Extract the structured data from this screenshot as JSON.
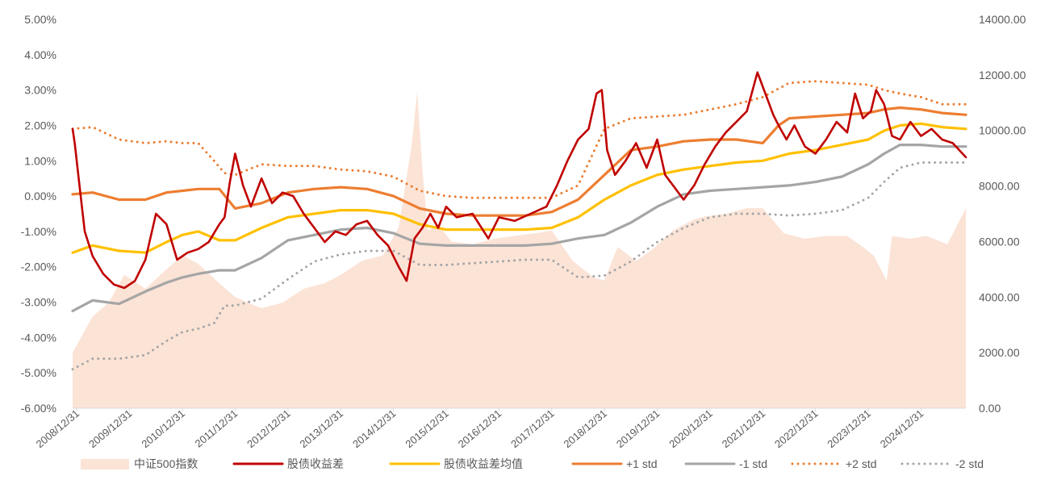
{
  "chart_data": {
    "type": "line",
    "title": "",
    "y_left": {
      "ylim": [
        -6,
        5
      ],
      "ticks": [
        5,
        4,
        3,
        2,
        1,
        0,
        -1,
        -2,
        -3,
        -4,
        -5,
        -6
      ],
      "tick_labels": [
        "5.00%",
        "4.00%",
        "3.00%",
        "2.00%",
        "1.00%",
        "0.00%",
        "-1.00%",
        "-2.00%",
        "-3.00%",
        "-4.00%",
        "-5.00%",
        "-6.00%"
      ]
    },
    "y_right": {
      "ylim": [
        0,
        14000
      ],
      "ticks": [
        14000,
        12000,
        10000,
        8000,
        6000,
        4000,
        2000,
        0
      ],
      "tick_labels": [
        "14000.00",
        "12000.00",
        "10000.00",
        "8000.00",
        "6000.00",
        "4000.00",
        "2000.00",
        "0.00"
      ]
    },
    "x_axis": {
      "range": [
        2008.92,
        2025.85
      ],
      "ticks": [
        2009.0,
        2010.0,
        2011.0,
        2012.0,
        2013.0,
        2014.0,
        2015.0,
        2016.0,
        2017.0,
        2018.0,
        2019.0,
        2020.0,
        2021.0,
        2022.0,
        2023.0,
        2024.0,
        2025.0
      ],
      "tick_labels": [
        "2008/12/31",
        "2009/12/31",
        "2010/12/31",
        "2011/12/31",
        "2012/12/31",
        "2013/12/31",
        "2014/12/31",
        "2015/12/31",
        "2016/12/31",
        "2017/12/31",
        "2018/12/31",
        "2019/12/31",
        "2020/12/31",
        "2021/12/31",
        "2022/12/31",
        "2023/12/31",
        "2024/12/31"
      ]
    },
    "grid": false,
    "legend_position": "bottom",
    "series": [
      {
        "name": "中证500指数",
        "axis": "right",
        "kind": "area",
        "color": "#fbe3d6",
        "x": [
          2008.92,
          2009.3,
          2009.6,
          2009.9,
          2010.3,
          2010.7,
          2011.0,
          2011.3,
          2011.7,
          2012.0,
          2012.5,
          2012.9,
          2013.3,
          2013.7,
          2014.0,
          2014.4,
          2014.8,
          2015.1,
          2015.35,
          2015.45,
          2015.55,
          2015.65,
          2015.85,
          2016.1,
          2016.5,
          2016.9,
          2017.3,
          2017.7,
          2018.0,
          2018.4,
          2018.8,
          2019.0,
          2019.25,
          2019.6,
          2019.9,
          2020.3,
          2020.7,
          2020.9,
          2021.3,
          2021.7,
          2022.0,
          2022.4,
          2022.8,
          2023.2,
          2023.6,
          2023.9,
          2024.1,
          2024.35,
          2024.45,
          2024.8,
          2025.1,
          2025.5,
          2025.85
        ],
        "y": [
          2000,
          3300,
          3800,
          4800,
          4300,
          5000,
          5500,
          5200,
          4500,
          4000,
          3600,
          3800,
          4300,
          4500,
          4800,
          5300,
          5500,
          6500,
          9500,
          11400,
          8600,
          6400,
          6600,
          6000,
          5900,
          6100,
          6200,
          6300,
          6400,
          5300,
          4700,
          4600,
          5800,
          5300,
          5700,
          6400,
          6800,
          6900,
          7000,
          7200,
          7200,
          6300,
          6100,
          6200,
          6200,
          5800,
          5500,
          4600,
          6200,
          6100,
          6200,
          5900,
          7200
        ]
      },
      {
        "name": "股债收益差",
        "axis": "left",
        "kind": "line",
        "color": "#c00000",
        "x": [
          2008.92,
          2008.96,
          2009.05,
          2009.15,
          2009.3,
          2009.5,
          2009.7,
          2009.9,
          2010.1,
          2010.3,
          2010.5,
          2010.7,
          2010.9,
          2011.1,
          2011.3,
          2011.5,
          2011.7,
          2011.8,
          2011.9,
          2012.0,
          2012.15,
          2012.3,
          2012.5,
          2012.7,
          2012.9,
          2013.1,
          2013.3,
          2013.5,
          2013.7,
          2013.9,
          2014.1,
          2014.3,
          2014.5,
          2014.7,
          2014.9,
          2015.1,
          2015.25,
          2015.4,
          2015.55,
          2015.7,
          2015.85,
          2016.0,
          2016.2,
          2016.5,
          2016.8,
          2017.0,
          2017.3,
          2017.6,
          2017.9,
          2018.1,
          2018.3,
          2018.5,
          2018.7,
          2018.85,
          2018.95,
          2019.05,
          2019.2,
          2019.4,
          2019.6,
          2019.8,
          2020.0,
          2020.15,
          2020.3,
          2020.5,
          2020.7,
          2020.9,
          2021.1,
          2021.3,
          2021.5,
          2021.7,
          2021.9,
          2022.1,
          2022.2,
          2022.3,
          2022.45,
          2022.6,
          2022.8,
          2023.0,
          2023.2,
          2023.4,
          2023.6,
          2023.75,
          2023.9,
          2024.05,
          2024.15,
          2024.3,
          2024.45,
          2024.6,
          2024.8,
          2025.0,
          2025.2,
          2025.4,
          2025.6,
          2025.85
        ],
        "y": [
          1.9,
          1.5,
          0.3,
          -1.0,
          -1.7,
          -2.2,
          -2.5,
          -2.6,
          -2.4,
          -1.8,
          -0.5,
          -0.8,
          -1.8,
          -1.6,
          -1.5,
          -1.3,
          -0.8,
          -0.6,
          0.4,
          1.2,
          0.3,
          -0.3,
          0.5,
          -0.2,
          0.1,
          0.0,
          -0.5,
          -0.9,
          -1.3,
          -1.0,
          -1.1,
          -0.8,
          -0.7,
          -1.1,
          -1.4,
          -2.0,
          -2.4,
          -1.2,
          -0.9,
          -0.5,
          -0.9,
          -0.3,
          -0.6,
          -0.5,
          -1.2,
          -0.6,
          -0.7,
          -0.5,
          -0.3,
          0.3,
          1.0,
          1.6,
          1.9,
          2.9,
          3.0,
          1.3,
          0.6,
          1.0,
          1.5,
          0.8,
          1.6,
          0.6,
          0.3,
          -0.1,
          0.3,
          0.9,
          1.4,
          1.8,
          2.1,
          2.4,
          3.5,
          2.7,
          2.3,
          2.0,
          1.6,
          2.0,
          1.4,
          1.2,
          1.6,
          2.1,
          1.8,
          2.9,
          2.2,
          2.4,
          3.0,
          2.6,
          1.7,
          1.6,
          2.1,
          1.7,
          1.9,
          1.6,
          1.5,
          1.1
        ]
      },
      {
        "name": "股债收益差均值",
        "axis": "left",
        "kind": "line",
        "color": "#ffc000",
        "x": [
          2008.92,
          2009.3,
          2009.8,
          2010.3,
          2010.7,
          2011.0,
          2011.3,
          2011.7,
          2012.0,
          2012.5,
          2013.0,
          2013.5,
          2014.0,
          2014.5,
          2015.0,
          2015.5,
          2016.0,
          2016.5,
          2017.0,
          2017.5,
          2018.0,
          2018.5,
          2019.0,
          2019.5,
          2020.0,
          2020.5,
          2021.0,
          2021.5,
          2022.0,
          2022.5,
          2023.0,
          2023.5,
          2024.0,
          2024.3,
          2024.6,
          2025.0,
          2025.4,
          2025.85
        ],
        "y": [
          -1.6,
          -1.4,
          -1.55,
          -1.6,
          -1.3,
          -1.1,
          -1.0,
          -1.25,
          -1.25,
          -0.9,
          -0.6,
          -0.5,
          -0.4,
          -0.4,
          -0.5,
          -0.8,
          -0.95,
          -0.95,
          -0.95,
          -0.95,
          -0.9,
          -0.6,
          -0.1,
          0.3,
          0.6,
          0.75,
          0.85,
          0.95,
          1.0,
          1.2,
          1.3,
          1.45,
          1.6,
          1.85,
          2.0,
          2.05,
          1.95,
          1.9
        ]
      },
      {
        "name": "+1 std",
        "axis": "left",
        "kind": "line",
        "color": "#ed7d31",
        "x": [
          2008.92,
          2009.3,
          2009.8,
          2010.3,
          2010.7,
          2011.0,
          2011.3,
          2011.7,
          2012.0,
          2012.5,
          2013.0,
          2013.5,
          2014.0,
          2014.5,
          2015.0,
          2015.5,
          2016.0,
          2016.5,
          2017.0,
          2017.5,
          2018.0,
          2018.5,
          2019.0,
          2019.5,
          2020.0,
          2020.5,
          2021.0,
          2021.5,
          2022.0,
          2022.3,
          2022.5,
          2023.0,
          2023.5,
          2024.0,
          2024.3,
          2024.6,
          2025.0,
          2025.4,
          2025.85
        ],
        "y": [
          0.05,
          0.1,
          -0.1,
          -0.1,
          0.1,
          0.15,
          0.2,
          0.2,
          -0.35,
          -0.2,
          0.1,
          0.2,
          0.25,
          0.2,
          0.0,
          -0.35,
          -0.5,
          -0.55,
          -0.55,
          -0.55,
          -0.45,
          -0.1,
          0.6,
          1.3,
          1.4,
          1.55,
          1.6,
          1.6,
          1.5,
          2.0,
          2.2,
          2.25,
          2.3,
          2.35,
          2.45,
          2.5,
          2.45,
          2.35,
          2.3
        ]
      },
      {
        "name": "-1 std",
        "axis": "left",
        "kind": "line",
        "color": "#a5a5a5",
        "x": [
          2008.92,
          2009.3,
          2009.8,
          2010.3,
          2010.7,
          2011.0,
          2011.3,
          2011.7,
          2012.0,
          2012.5,
          2013.0,
          2013.5,
          2014.0,
          2014.5,
          2015.0,
          2015.5,
          2016.0,
          2016.5,
          2017.0,
          2017.5,
          2018.0,
          2018.5,
          2019.0,
          2019.5,
          2020.0,
          2020.5,
          2021.0,
          2021.5,
          2022.0,
          2022.5,
          2023.0,
          2023.5,
          2024.0,
          2024.3,
          2024.6,
          2025.0,
          2025.4,
          2025.85
        ],
        "y": [
          -3.25,
          -2.95,
          -3.05,
          -2.7,
          -2.45,
          -2.3,
          -2.2,
          -2.1,
          -2.1,
          -1.75,
          -1.25,
          -1.1,
          -0.95,
          -0.9,
          -1.05,
          -1.35,
          -1.4,
          -1.4,
          -1.4,
          -1.4,
          -1.35,
          -1.2,
          -1.1,
          -0.75,
          -0.3,
          0.05,
          0.15,
          0.2,
          0.25,
          0.3,
          0.4,
          0.55,
          0.9,
          1.2,
          1.45,
          1.45,
          1.4,
          1.4
        ]
      },
      {
        "name": "+2 std",
        "axis": "left",
        "kind": "dotted",
        "color": "#ed7d31",
        "x": [
          2008.92,
          2009.3,
          2009.8,
          2010.3,
          2010.7,
          2011.0,
          2011.3,
          2011.6,
          2011.8,
          2012.0,
          2012.5,
          2013.0,
          2013.5,
          2014.0,
          2014.5,
          2015.0,
          2015.5,
          2016.0,
          2016.5,
          2017.0,
          2017.5,
          2018.0,
          2018.5,
          2019.0,
          2019.5,
          2020.0,
          2020.5,
          2021.0,
          2021.5,
          2022.0,
          2022.5,
          2023.0,
          2023.5,
          2024.0,
          2024.3,
          2024.6,
          2025.0,
          2025.4,
          2025.85
        ],
        "y": [
          1.9,
          1.95,
          1.6,
          1.5,
          1.55,
          1.5,
          1.5,
          1.0,
          0.65,
          0.6,
          0.9,
          0.85,
          0.85,
          0.75,
          0.7,
          0.55,
          0.15,
          0.0,
          -0.05,
          -0.05,
          -0.05,
          -0.05,
          0.3,
          1.9,
          2.2,
          2.25,
          2.3,
          2.45,
          2.6,
          2.8,
          3.2,
          3.25,
          3.2,
          3.15,
          3.0,
          2.9,
          2.8,
          2.6,
          2.6
        ]
      },
      {
        "name": "-2 std",
        "axis": "left",
        "kind": "dotted",
        "color": "#a5a5a5",
        "x": [
          2008.92,
          2009.3,
          2009.8,
          2010.3,
          2010.7,
          2011.0,
          2011.3,
          2011.6,
          2011.8,
          2012.0,
          2012.5,
          2013.0,
          2013.5,
          2014.0,
          2014.5,
          2015.0,
          2015.5,
          2016.0,
          2016.5,
          2017.0,
          2017.5,
          2018.0,
          2018.5,
          2019.0,
          2019.5,
          2020.0,
          2020.5,
          2021.0,
          2021.5,
          2022.0,
          2022.5,
          2023.0,
          2023.5,
          2024.0,
          2024.3,
          2024.6,
          2025.0,
          2025.4,
          2025.85
        ],
        "y": [
          -4.9,
          -4.6,
          -4.6,
          -4.5,
          -4.1,
          -3.85,
          -3.75,
          -3.6,
          -3.1,
          -3.1,
          -2.9,
          -2.35,
          -1.85,
          -1.65,
          -1.55,
          -1.55,
          -1.95,
          -1.95,
          -1.9,
          -1.85,
          -1.8,
          -1.8,
          -2.3,
          -2.25,
          -1.85,
          -1.3,
          -0.9,
          -0.6,
          -0.5,
          -0.5,
          -0.55,
          -0.5,
          -0.4,
          -0.05,
          0.4,
          0.8,
          0.95,
          0.95,
          0.95
        ]
      }
    ]
  }
}
